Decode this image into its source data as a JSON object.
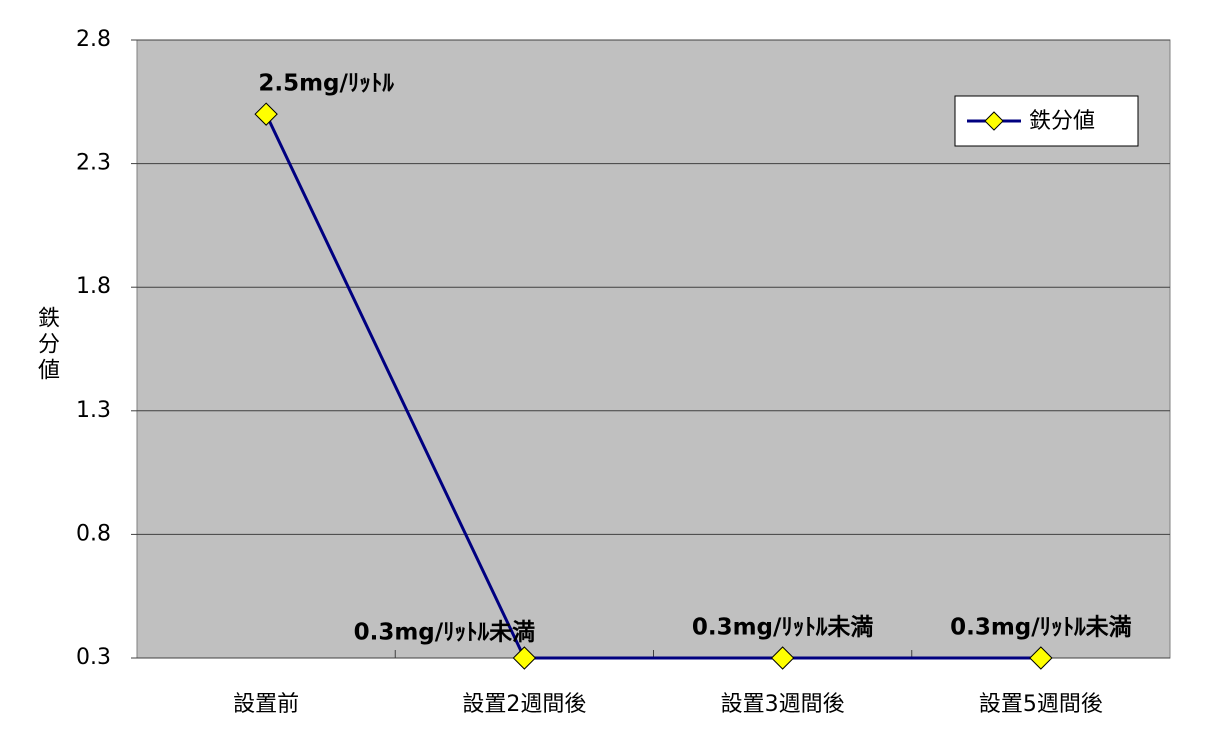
{
  "chart_data": {
    "type": "line",
    "y_label": "鉄分値",
    "categories": [
      "設置前",
      "設置2週間後",
      "設置3週間後",
      "設置5週間後"
    ],
    "series": [
      {
        "name": "鉄分値",
        "color": "#000080",
        "marker_color": "#ffff00",
        "values": [
          2.5,
          0.3,
          0.3,
          0.3
        ],
        "value_labels": [
          "2.5mg/ﾘｯﾄﾙ",
          "0.3mg/ﾘｯﾄﾙ未満",
          "0.3mg/ﾘｯﾄﾙ未満",
          "0.3mg/ﾘｯﾄﾙ未満"
        ]
      }
    ],
    "ylim": [
      0.3,
      2.8
    ],
    "yticks": [
      0.3,
      0.8,
      1.3,
      1.8,
      2.3,
      2.8
    ],
    "grid": true,
    "legend": "upper right"
  }
}
